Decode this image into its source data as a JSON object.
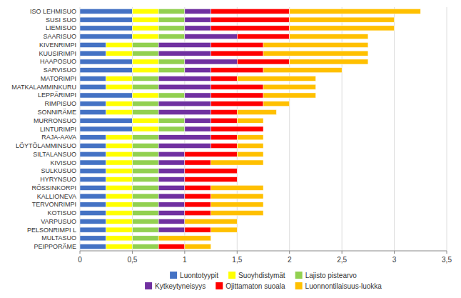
{
  "chart_data": {
    "type": "bar",
    "orientation": "horizontal",
    "stacked": true,
    "categories": [
      "ISO LEHMISUO",
      "SUSI SUO",
      "LIEMISUO",
      "SAARISUO",
      "KIVENRIMPI",
      "KUUSIRIMPI",
      "HAAPOSUO",
      "SARVISUO",
      "MATORIMPI",
      "MATKALAMMINKURU",
      "LEPPÄRIMPI",
      "RIMPISUO",
      "SONNIRÄME",
      "MURRONSUO",
      "LINTURIMPI",
      "RAJA-AAVA",
      "LÖYTÖLAMMINSUO",
      "SILTALANSUO",
      "KIVISUO",
      "SULKUSUO",
      "HYRYNSUO",
      "RÖSSINKORPI",
      "KALLIONEVA",
      "TERVONRIMPI",
      "KOTISUO",
      "VARPUSUO",
      "PELSONRIMPI L",
      "MULTASUO",
      "PEIPPORÄME"
    ],
    "series": [
      {
        "name": "Luontotyypit",
        "color": "#4472C4",
        "values": [
          0.5,
          0.5,
          0.5,
          0.5,
          0.25,
          0.25,
          0.5,
          0.5,
          0.25,
          0.25,
          0.5,
          0.25,
          0.25,
          0.5,
          0.5,
          0.25,
          0.25,
          0.25,
          0.25,
          0.25,
          0.25,
          0.25,
          0.25,
          0.25,
          0.25,
          0.25,
          0.25,
          0.25,
          0.25
        ]
      },
      {
        "name": "Suoyhdistymät",
        "color": "#FFFF00",
        "values": [
          0.25,
          0.25,
          0.25,
          0.25,
          0.25,
          0.25,
          0.25,
          0.25,
          0.25,
          0.25,
          0.25,
          0.25,
          0.25,
          0.25,
          0.25,
          0.25,
          0.25,
          0.25,
          0.25,
          0.25,
          0.25,
          0.25,
          0.25,
          0.25,
          0.25,
          0.25,
          0.25,
          0.25,
          0.25
        ]
      },
      {
        "name": "Lajisto pistearvo",
        "color": "#92D050",
        "values": [
          0.25,
          0.25,
          0.25,
          0.25,
          0.25,
          0.25,
          0.25,
          0.25,
          0.25,
          0.25,
          0.25,
          0.25,
          0.25,
          0.25,
          0.25,
          0.25,
          0.25,
          0.25,
          0.25,
          0.25,
          0.25,
          0.25,
          0.25,
          0.25,
          0.25,
          0.25,
          0.25,
          0.25,
          0.25
        ]
      },
      {
        "name": "Kytkeytyneisyys",
        "color": "#7030A0",
        "values": [
          0.25,
          0.25,
          0.25,
          0.5,
          0.5,
          0.5,
          0.5,
          0.25,
          0.5,
          0.5,
          0.25,
          0.5,
          0.5,
          0.25,
          0.25,
          0.5,
          0.5,
          0.25,
          0.25,
          0.25,
          0.25,
          0.25,
          0.25,
          0.25,
          0.25,
          0.25,
          0.25,
          0.0,
          0.0
        ]
      },
      {
        "name": "Ojittamaton suoala",
        "color": "#FF0000",
        "values": [
          0.75,
          0.75,
          0.75,
          0.5,
          0.5,
          0.5,
          0.5,
          0.5,
          0.25,
          0.5,
          0.5,
          0.5,
          0.25,
          0.25,
          0.5,
          0.25,
          0.25,
          0.5,
          0.25,
          0.5,
          0.5,
          0.25,
          0.25,
          0.25,
          0.25,
          0.0,
          0.25,
          0.0,
          0.25
        ]
      },
      {
        "name": "Luonnontilaisuus-luokka",
        "color": "#FFC000",
        "values": [
          1.25,
          1.0,
          1.0,
          0.75,
          1.0,
          1.0,
          0.75,
          0.75,
          0.75,
          0.5,
          0.5,
          0.25,
          0.375,
          0.25,
          0.0,
          0.25,
          0.25,
          0.25,
          0.5,
          0.0,
          0.0,
          0.5,
          0.5,
          0.5,
          0.5,
          0.5,
          0.25,
          0.5,
          0.25
        ]
      }
    ],
    "xlim": [
      0,
      3.5
    ],
    "xticks": [
      0,
      {
        "value": 0.5,
        "label": "0,5"
      },
      1,
      {
        "value": 1.5,
        "label": "1,5"
      },
      2,
      {
        "value": 2.5,
        "label": "2,5"
      },
      3,
      {
        "value": 3.5,
        "label": "3,5"
      }
    ],
    "grid": true,
    "legend": "bottom"
  }
}
